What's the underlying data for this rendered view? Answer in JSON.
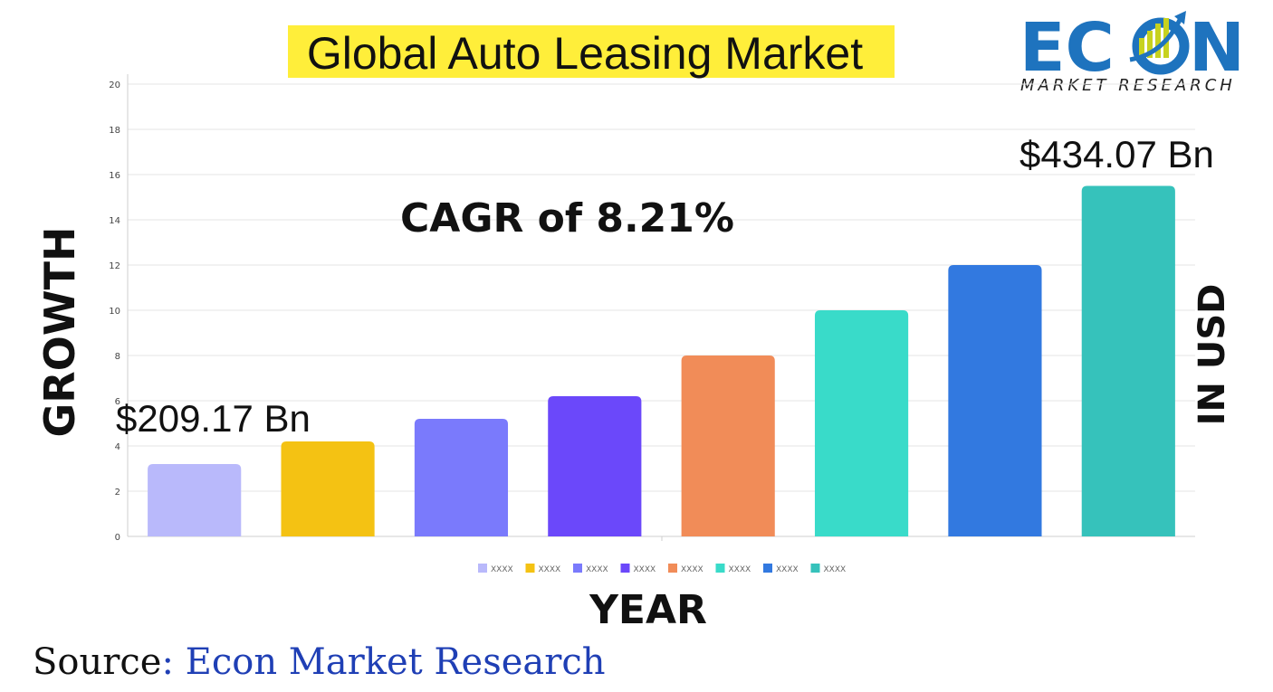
{
  "chart_data": {
    "type": "bar",
    "title": "Global Auto Leasing Market",
    "xlabel": "YEAR",
    "ylabel": "GROWTH",
    "right_label": "IN USD",
    "ylim": [
      0,
      20
    ],
    "yticks": [
      0,
      2,
      4,
      6,
      8,
      10,
      12,
      14,
      16,
      18,
      20
    ],
    "grid": true,
    "legend_position": "bottom",
    "categories": [
      "XXXX",
      "XXXX",
      "XXXX",
      "XXXX",
      "XXXX",
      "XXXX",
      "XXXX",
      "XXXX"
    ],
    "values": [
      3.2,
      4.2,
      5.2,
      6.2,
      8.0,
      10.0,
      12.0,
      15.5
    ],
    "colors": [
      "#b9b9fb",
      "#f4c213",
      "#7a7afc",
      "#6b48fa",
      "#f18c58",
      "#39dbc9",
      "#3279e0",
      "#36c2bb"
    ],
    "annotations": {
      "start_value": "$209.17 Bn",
      "end_value": "$434.07 Bn",
      "cagr": "CAGR of 8.21%"
    }
  },
  "source": {
    "label": "Source",
    "name": ": Econ Market Research"
  },
  "logo": {
    "word_left": "EC",
    "word_right": "N",
    "subtitle": "MARKET RESEARCH",
    "colors": {
      "main": "#1e73be",
      "accent": "#c7d21f"
    }
  }
}
